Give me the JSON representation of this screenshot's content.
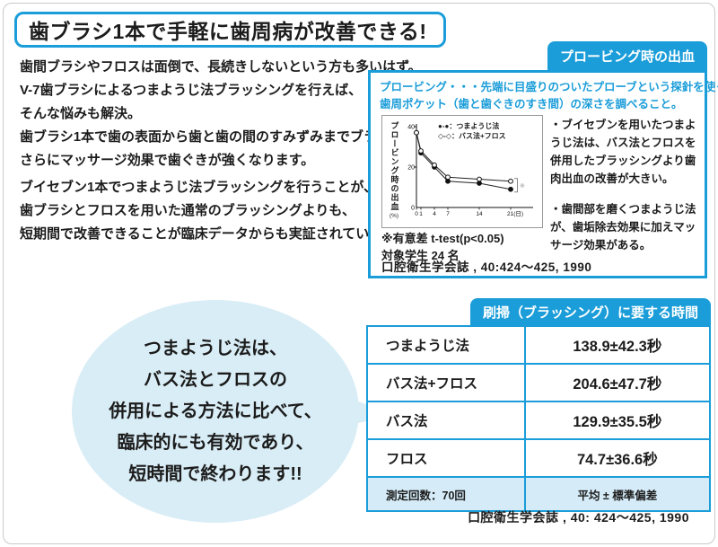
{
  "page": {
    "title": "歯ブラシ1本で手軽に歯周病が改善できる!"
  },
  "intro": {
    "p1": [
      "歯間ブラシやフロスは面倒で、長続きしないという方も多いはず。",
      "V-7歯ブラシによるつまようじ法ブラッシングを行えば、",
      "そんな悩みも解決。",
      "歯ブラシ1本で歯の表面から歯と歯の間のすみずみまでブラッシング。",
      "さらにマッサージ効果で歯ぐきが強くなります。"
    ],
    "p2": [
      "ブイセブン1本でつまようじ法ブラッシングを行うことが、",
      "歯ブラシとフロスを用いた通常のブラッシングよりも、",
      "短期間で改善できることが臨床データからも実証されています。"
    ]
  },
  "probing": {
    "tab": "プロービング時の出血",
    "def1": "プロービング・・・先端に目盛りのついたプローブという探針を使って",
    "def2": "歯周ポケット（歯と歯ぐきのすき間）の深さを調べること。",
    "bullet1": "・ブイセブンを用いたつまようじ法は、バス法とフロスを併用したブラッシングより歯肉出血の改善が大きい。",
    "bullet2": "・歯間部を磨くつまようじ法が、歯垢除去効果に加えマッサージ効果がある。",
    "note1": "※有意差 t-test(p<0.05)",
    "note2": "対象学生 24 名",
    "citation": "口腔衛生学会誌 , 40:424～425, 1990"
  },
  "chart_data": {
    "type": "line",
    "x": [
      0,
      1,
      4,
      7,
      14,
      21
    ],
    "xtick_labels": [
      "0",
      "1",
      "4",
      "7",
      "14",
      "21(日)"
    ],
    "xlabel": "(日)",
    "ylabel": "プロービング時の出血",
    "ylabel_unit": "(%)",
    "ylim": [
      0,
      40
    ],
    "yticks": [
      0,
      20,
      40
    ],
    "series": [
      {
        "name": "つまようじ法",
        "marker": "filled-circle",
        "values": [
          37,
          27,
          20,
          13,
          12,
          9
        ]
      },
      {
        "name": "バス法+フロス",
        "marker": "open-circle",
        "values": [
          37,
          28,
          21,
          15,
          14,
          13
        ]
      }
    ],
    "legend": [
      "●-●：つまようじ法",
      "◇-◇：バス法+フロス"
    ],
    "annotation": "※",
    "grid": false,
    "legend_position": "top-right"
  },
  "bubble": {
    "lines": [
      "つまようじ法は、",
      "バス法とフロスの",
      "併用による方法に比べて、",
      "臨床的にも有効であり、",
      "短時間で終わります!!"
    ]
  },
  "time_table": {
    "tab": "刷掃（ブラッシング）に要する時間",
    "rows": [
      {
        "label": "つまようじ法",
        "value": "138.9±42.3秒"
      },
      {
        "label": "バス法+フロス",
        "value": "204.6±47.7秒"
      },
      {
        "label": "バス法",
        "value": "129.9±35.5秒"
      },
      {
        "label": "フロス",
        "value": "74.7±36.6秒"
      }
    ],
    "footer_label": "測定回数：70回",
    "footer_value": "平均 ± 標準偏差",
    "citation": "口腔衛生学会誌 , 40: 424～425, 1990"
  },
  "colors": {
    "accent_blue": "#1b9dd9",
    "light_blue_fill": "#d5ecf8",
    "bubble_fill": "#d9edf6",
    "frame_gray": "#c9c9c9"
  }
}
